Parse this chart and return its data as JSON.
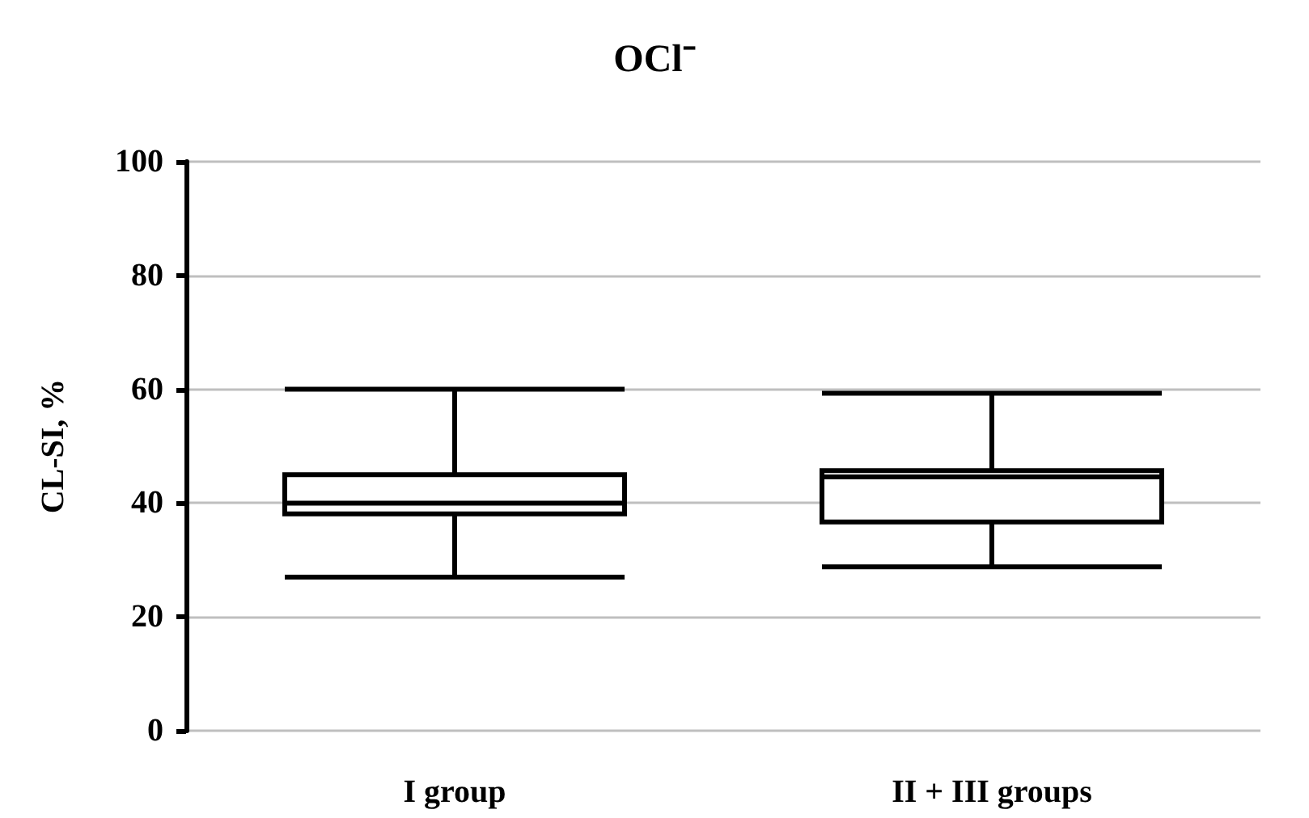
{
  "chart_data": {
    "type": "box",
    "title": "OCl⁻",
    "ylabel": "CL-SI, %",
    "categories": [
      "I group",
      "II + III groups"
    ],
    "boxes": [
      {
        "low": 27,
        "q1": 38.1,
        "median": 40,
        "q3": 45,
        "high": 60
      },
      {
        "low": 28.8,
        "q1": 36.7,
        "median": 44.6,
        "q3": 45.7,
        "high": 59.3
      }
    ],
    "color": "#000000",
    "ylim": [
      0,
      100
    ],
    "yticks": [
      0,
      20,
      40,
      60,
      80,
      100
    ],
    "grid": "y"
  }
}
